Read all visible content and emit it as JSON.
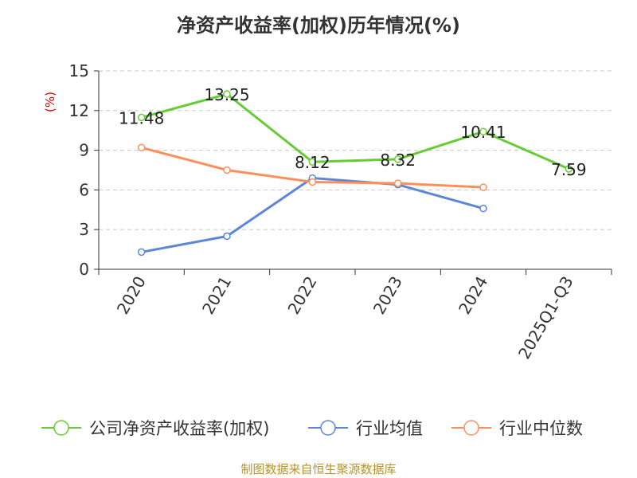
{
  "chart_data": {
    "type": "line",
    "title": "净资产收益率(加权)历年情况(%)",
    "ylabel": "(%)",
    "xlabel": "",
    "categories": [
      "2020",
      "2021",
      "2022",
      "2023",
      "2024",
      "2025Q1-Q3"
    ],
    "ylim": [
      0,
      15
    ],
    "yticks": [
      0,
      3,
      6,
      9,
      12,
      15
    ],
    "series": [
      {
        "name": "公司净资产收益率(加权)",
        "color": "#66cc33",
        "values": [
          11.48,
          13.25,
          8.12,
          8.32,
          10.41,
          7.59
        ],
        "labels": [
          "11.48",
          "13.25",
          "8.12",
          "8.32",
          "10.41",
          "7.59"
        ]
      },
      {
        "name": "行业均值",
        "color": "#5b86d9",
        "values": [
          1.3,
          2.5,
          6.9,
          6.4,
          4.6,
          null
        ]
      },
      {
        "name": "行业中位数",
        "color": "#ff8f5a",
        "values": [
          9.2,
          7.5,
          6.6,
          6.5,
          6.2,
          null
        ]
      }
    ],
    "grid": true,
    "legend_position": "bottom"
  },
  "footer": "制图数据来自恒生聚源数据库"
}
